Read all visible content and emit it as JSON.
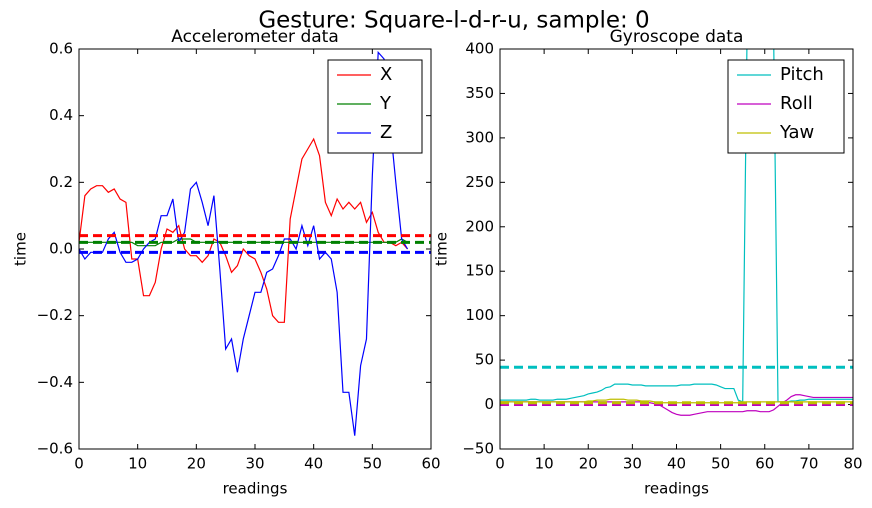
{
  "figure_title": "Gesture: Square-l-d-r-u, sample: 0",
  "chart_data": [
    {
      "type": "line",
      "title": "Accelerometer data",
      "x_label": "readings",
      "y_label": "time",
      "xlim": [
        0,
        60
      ],
      "xticks": [
        0,
        10,
        20,
        30,
        40,
        50,
        60
      ],
      "ylim": [
        -0.6,
        0.6
      ],
      "yticks": [
        {
          "value": -0.6,
          "label": "−0.6"
        },
        {
          "value": -0.4,
          "label": "−0.4"
        },
        {
          "value": -0.2,
          "label": "−0.2"
        },
        {
          "value": 0,
          "label": "0.0"
        },
        0.2,
        0.4,
        0.6
      ],
      "legend": "upper right",
      "x": [
        0,
        1,
        2,
        3,
        4,
        5,
        6,
        7,
        8,
        9,
        10,
        11,
        12,
        13,
        14,
        15,
        16,
        17,
        18,
        19,
        20,
        21,
        22,
        23,
        24,
        25,
        26,
        27,
        28,
        29,
        30,
        31,
        32,
        33,
        34,
        35,
        36,
        37,
        38,
        39,
        40,
        41,
        42,
        43,
        44,
        45,
        46,
        47,
        48,
        49,
        50,
        51,
        52,
        53,
        54,
        55,
        56
      ],
      "series": [
        {
          "name": "X",
          "color": "#ff0000",
          "values": [
            0.02,
            0.16,
            0.18,
            0.19,
            0.19,
            0.17,
            0.18,
            0.15,
            0.14,
            -0.03,
            -0.03,
            -0.14,
            -0.14,
            -0.1,
            0.0,
            0.06,
            0.05,
            0.07,
            0.0,
            -0.02,
            -0.02,
            -0.04,
            -0.02,
            0.03,
            0.02,
            -0.02,
            -0.07,
            -0.05,
            0.0,
            -0.02,
            -0.03,
            -0.07,
            -0.12,
            -0.2,
            -0.22,
            -0.22,
            0.09,
            0.18,
            0.27,
            0.3,
            0.33,
            0.28,
            0.14,
            0.1,
            0.15,
            0.12,
            0.14,
            0.12,
            0.14,
            0.08,
            0.11,
            0.05,
            0.02,
            0.02,
            0.01,
            0.02,
            0.0
          ]
        },
        {
          "name": "Y",
          "color": "#008000",
          "values": [
            0.02,
            0.02,
            0.02,
            0.02,
            0.02,
            0.02,
            0.02,
            0.02,
            0.02,
            0.02,
            0.01,
            0.01,
            0.01,
            0.01,
            0.02,
            0.02,
            0.02,
            0.03,
            0.03,
            0.03,
            0.02,
            0.02,
            0.02,
            0.02,
            0.02,
            0.02,
            0.02,
            0.02,
            0.02,
            0.02,
            0.02,
            0.02,
            0.02,
            0.02,
            0.02,
            0.02,
            0.02,
            0.02,
            0.02,
            0.02,
            0.02,
            0.02,
            0.02,
            0.02,
            0.02,
            0.02,
            0.02,
            0.02,
            0.02,
            0.02,
            0.02,
            0.02,
            0.02,
            0.02,
            0.02,
            0.03,
            0.02
          ]
        },
        {
          "name": "Z",
          "color": "#0000ff",
          "values": [
            0.0,
            -0.03,
            -0.01,
            -0.01,
            -0.01,
            0.03,
            0.05,
            -0.01,
            -0.04,
            -0.04,
            -0.03,
            0.0,
            0.02,
            0.03,
            0.1,
            0.1,
            0.15,
            0.02,
            0.05,
            0.18,
            0.2,
            0.14,
            0.07,
            0.16,
            -0.06,
            -0.3,
            -0.27,
            -0.37,
            -0.27,
            -0.2,
            -0.13,
            -0.13,
            -0.07,
            -0.06,
            -0.02,
            0.03,
            0.03,
            0.0,
            0.07,
            0.01,
            0.07,
            -0.03,
            -0.01,
            -0.03,
            -0.13,
            -0.43,
            -0.43,
            -0.56,
            -0.35,
            -0.27,
            0.22,
            0.59,
            0.57,
            0.38,
            0.2,
            0.03,
            0.0
          ]
        }
      ],
      "reference_lines": [
        {
          "value": 0.04,
          "color": "#ff0000",
          "style": "dashed"
        },
        {
          "value": 0.02,
          "color": "#008000",
          "style": "dashed"
        },
        {
          "value": -0.01,
          "color": "#0000ff",
          "style": "dashed"
        }
      ]
    },
    {
      "type": "line",
      "title": "Gyroscope data",
      "x_label": "readings",
      "y_label": "time",
      "xlim": [
        0,
        80
      ],
      "xticks": [
        0,
        10,
        20,
        30,
        40,
        50,
        60,
        70,
        80
      ],
      "ylim": [
        -50,
        400
      ],
      "yticks": [
        {
          "value": -50,
          "label": "−50"
        },
        0,
        50,
        100,
        150,
        200,
        250,
        300,
        350,
        400
      ],
      "legend": "upper right",
      "x": [
        0,
        1,
        2,
        3,
        4,
        5,
        6,
        7,
        8,
        9,
        10,
        11,
        12,
        13,
        14,
        15,
        16,
        17,
        18,
        19,
        20,
        21,
        22,
        23,
        24,
        25,
        26,
        27,
        28,
        29,
        30,
        31,
        32,
        33,
        34,
        35,
        36,
        37,
        38,
        39,
        40,
        41,
        42,
        43,
        44,
        45,
        46,
        47,
        48,
        49,
        50,
        51,
        52,
        53,
        54,
        55,
        56,
        57,
        58,
        59,
        60,
        61,
        62,
        63,
        64,
        65,
        66,
        67,
        68,
        69,
        70,
        71,
        72,
        73,
        74,
        75,
        76,
        77,
        78,
        79,
        80
      ],
      "series": [
        {
          "name": "Pitch",
          "color": "#00bfbf",
          "values": [
            5,
            5,
            5,
            5,
            5,
            5,
            5,
            6,
            6,
            5,
            5,
            5,
            5,
            6,
            6,
            6,
            7,
            8,
            9,
            10,
            12,
            13,
            14,
            16,
            19,
            20,
            23,
            23,
            23,
            23,
            22,
            22,
            22,
            21,
            21,
            21,
            21,
            21,
            21,
            21,
            21,
            22,
            22,
            22,
            23,
            23,
            23,
            23,
            23,
            22,
            20,
            18,
            18,
            18,
            5,
            3,
            420,
            420,
            420,
            420,
            420,
            420,
            420,
            3,
            3,
            3,
            4,
            4,
            5,
            5,
            6,
            6,
            6,
            6,
            6,
            6,
            6,
            6,
            6,
            6,
            6
          ]
        },
        {
          "name": "Roll",
          "color": "#bf00bf",
          "values": [
            3,
            3,
            3,
            3,
            3,
            3,
            3,
            3,
            3,
            3,
            3,
            3,
            3,
            3,
            3,
            3,
            3,
            3,
            3,
            3,
            3,
            3,
            3,
            3,
            3,
            3,
            3,
            3,
            3,
            3,
            3,
            3,
            3,
            2,
            2,
            1,
            0,
            -3,
            -6,
            -9,
            -11,
            -12,
            -12,
            -12,
            -11,
            -10,
            -9,
            -8,
            -8,
            -8,
            -8,
            -8,
            -8,
            -8,
            -8,
            -8,
            -7,
            -7,
            -7,
            -8,
            -8,
            -8,
            -6,
            -2,
            2,
            5,
            9,
            11,
            11,
            10,
            9,
            8,
            8,
            8,
            8,
            8,
            8,
            8,
            8,
            8,
            8
          ]
        },
        {
          "name": "Yaw",
          "color": "#bfbf00",
          "values": [
            3,
            3,
            3,
            3,
            3,
            3,
            3,
            3,
            3,
            3,
            3,
            3,
            3,
            3,
            3,
            3,
            3,
            3,
            3,
            3,
            4,
            4,
            5,
            5,
            5,
            6,
            6,
            6,
            6,
            5,
            5,
            5,
            4,
            4,
            4,
            3,
            2,
            2,
            2,
            2,
            2,
            2,
            2,
            2,
            2,
            2,
            2,
            2,
            2,
            2,
            2,
            2,
            2,
            2,
            2,
            2,
            3,
            3,
            3,
            3,
            3,
            3,
            3,
            3,
            3,
            3,
            3,
            3,
            3,
            3,
            3,
            3,
            3,
            3,
            3,
            3,
            3,
            3,
            3,
            3,
            3
          ]
        }
      ],
      "reference_lines": [
        {
          "value": 42,
          "color": "#00bfbf",
          "style": "dashed"
        },
        {
          "value": 0,
          "color": "#bf00bf",
          "style": "dashed"
        },
        {
          "value": 2,
          "color": "#bfbf00",
          "style": "dashed"
        }
      ]
    }
  ]
}
